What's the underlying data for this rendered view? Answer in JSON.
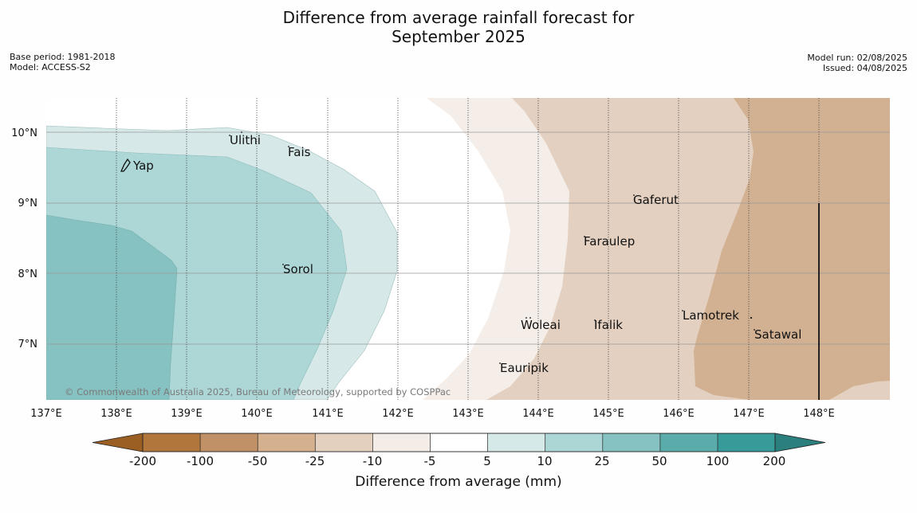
{
  "header": {
    "title_line1": "Difference from average rainfall forecast for",
    "title_line2": "September 2025",
    "base_period": "Base period: 1981-2018",
    "model": "Model: ACCESS-S2",
    "model_run": "Model run: 02/08/2025",
    "issued": "Issued: 04/08/2025"
  },
  "map": {
    "longitude_ticks": [
      "137°E",
      "138°E",
      "139°E",
      "140°E",
      "141°E",
      "142°E",
      "143°E",
      "144°E",
      "145°E",
      "146°E",
      "147°E",
      "148°E"
    ],
    "latitude_ticks": [
      "10°N",
      "9°N",
      "8°N",
      "7°N"
    ],
    "places": [
      "Ulithi",
      "Fais",
      "Yap",
      "Gaferut",
      "Faraulep",
      "Sorol",
      "Woleai",
      "Ifalik",
      "Lamotrek",
      "Satawal",
      "Eauripik"
    ],
    "copyright": "© Commonwealth of Australia 2025, Bureau of Meteorology, supported by COSPPac"
  },
  "colorbar": {
    "tick_labels": [
      "-200",
      "-100",
      "-50",
      "-25",
      "-10",
      "-5",
      "5",
      "10",
      "25",
      "50",
      "100",
      "200"
    ],
    "colors": [
      "#9b5f24",
      "#b0763c",
      "#c09066",
      "#d4b08e",
      "#e3d0bf",
      "#f3ece7",
      "#ffffff",
      "#d5e9e8",
      "#acd5d5",
      "#85c2c1",
      "#5aacab",
      "#379b99",
      "#2b7f7d"
    ],
    "label": "Difference from average (mm)"
  },
  "colors": {
    "very_dry": "#d2b192",
    "dry": "#e3d0c0",
    "slightly_dry": "#f4ede8",
    "neutral": "#ffffff",
    "slightly_wet": "#d6e9e8",
    "wet": "#add6d6",
    "very_wet": "#86c2c1"
  }
}
